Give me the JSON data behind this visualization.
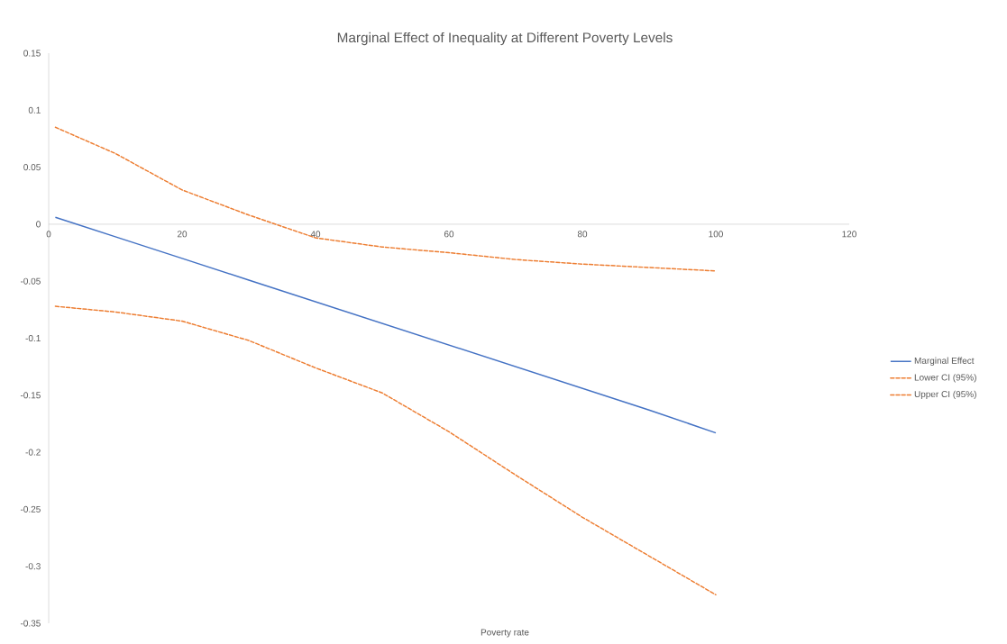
{
  "chart_data": {
    "type": "line",
    "title": "Marginal Effect of Inequality at Different Poverty Levels",
    "xlabel": "Poverty rate",
    "x": [
      1,
      10,
      20,
      30,
      40,
      50,
      60,
      70,
      80,
      90,
      100
    ],
    "series": [
      {
        "name": "Marginal Effect",
        "color": "#4472c4",
        "line_style": "solid",
        "values": [
          0.006,
          -0.011,
          -0.03,
          -0.049,
          -0.068,
          -0.087,
          -0.106,
          -0.125,
          -0.144,
          -0.163,
          -0.183
        ]
      },
      {
        "name": "Lower CI (95%)",
        "color": "#ed7d31",
        "line_style": "dashed",
        "values": [
          -0.072,
          -0.077,
          -0.085,
          -0.102,
          -0.126,
          -0.148,
          -0.182,
          -0.22,
          -0.257,
          -0.291,
          -0.325
        ]
      },
      {
        "name": "Upper CI (95%)",
        "color": "#ed7d31",
        "line_style": "dashed",
        "values": [
          0.085,
          0.062,
          0.03,
          0.008,
          -0.012,
          -0.02,
          -0.025,
          -0.031,
          -0.035,
          -0.038,
          -0.041
        ]
      }
    ],
    "xlim": [
      0,
      120
    ],
    "xticks": [
      0,
      20,
      40,
      60,
      80,
      100,
      120
    ],
    "ylim": [
      -0.35,
      0.15
    ],
    "yticks": [
      -0.35,
      -0.3,
      -0.25,
      -0.2,
      -0.15,
      -0.1,
      -0.05,
      0,
      0.05,
      0.1,
      0.15
    ],
    "grid": false,
    "legend": "right",
    "marker": "none"
  }
}
